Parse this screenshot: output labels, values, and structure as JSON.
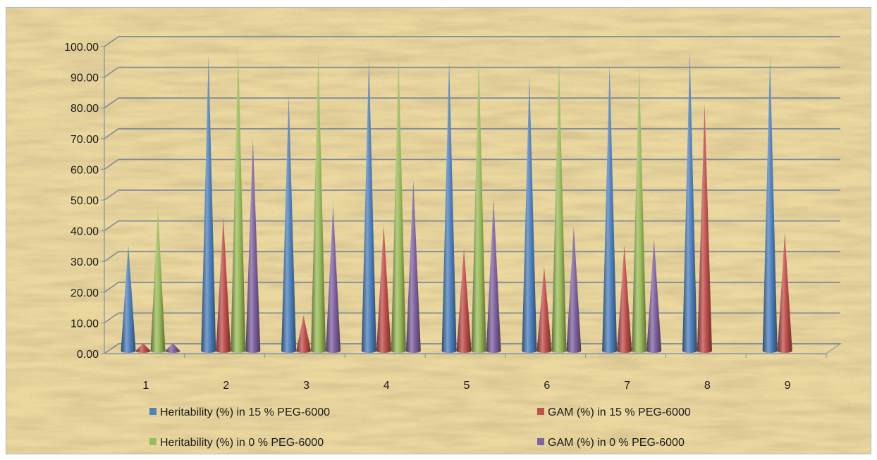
{
  "chart_data": {
    "type": "bar",
    "mark_shape": "cone",
    "render_3d": true,
    "categories": [
      "1",
      "2",
      "3",
      "4",
      "5",
      "6",
      "7",
      "8",
      "9"
    ],
    "series": [
      {
        "name": "Heritability (%) in 15 % PEG-6000",
        "color": "#4f81bd",
        "values": [
          34.5,
          96.5,
          83.5,
          95.5,
          94.5,
          90.0,
          93.0,
          97.5,
          95.5
        ]
      },
      {
        "name": "GAM (%) in 15 % PEG-6000",
        "color": "#c0504d",
        "values": [
          2.5,
          43.5,
          11.5,
          41.0,
          33.5,
          27.5,
          34.5,
          80.5,
          38.5
        ]
      },
      {
        "name": "Heritability (%) in 0 % PEG-6000",
        "color": "#9bbb59",
        "values": [
          46.0,
          98.5,
          96.5,
          95.5,
          95.5,
          94.5,
          92.5,
          null,
          null
        ]
      },
      {
        "name": "GAM (%) in 0 % PEG-6000",
        "color": "#8064a2",
        "values": [
          2.5,
          69.0,
          47.5,
          55.5,
          49.5,
          40.5,
          36.5,
          null,
          null
        ]
      }
    ],
    "y_ticks": [
      "0.00",
      "10.00",
      "20.00",
      "30.00",
      "40.00",
      "50.00",
      "60.00",
      "70.00",
      "80.00",
      "90.00",
      "100.00"
    ],
    "ylim": [
      0,
      100
    ],
    "grid": true,
    "legend_position": "bottom",
    "title": "",
    "xlabel": "",
    "ylabel": "",
    "background": "parchment texture"
  }
}
